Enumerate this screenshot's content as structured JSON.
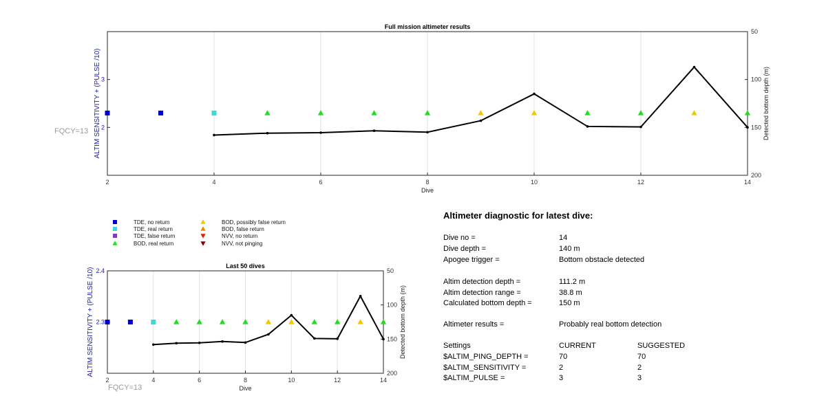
{
  "top_chart": {
    "title": "Full mission altimeter results",
    "xlabel": "Dive",
    "ylabel_left": "ALTIM SENSITIVITY + (PULSE /10)",
    "ylabel_right": "Detected bottom depth (m)",
    "side_label": "FQCY=13"
  },
  "bottom_chart": {
    "title": "Last 50 dives",
    "xlabel": "Dive",
    "ylabel_left": "ALTIM SENSITIVITY + (PULSE /10)",
    "ylabel_right": "Detected bottom depth (m)",
    "side_label": "FQCY=13"
  },
  "legend": {
    "items": [
      {
        "label": "TDE, no return",
        "marker": "square",
        "color": "#0000cc"
      },
      {
        "label": "TDE, real return",
        "marker": "square",
        "color": "#33dddd"
      },
      {
        "label": "TDE, false return",
        "marker": "square",
        "color": "#8833cc"
      },
      {
        "label": "BOD, real return",
        "marker": "triangle-up",
        "color": "#22dd22"
      },
      {
        "label": "BOD, possibly false return",
        "marker": "triangle-up",
        "color": "#f0c800"
      },
      {
        "label": "BOD, false return",
        "marker": "triangle-up",
        "color": "#ee8800"
      },
      {
        "label": "NVV, no return",
        "marker": "triangle-down",
        "color": "#dd2200"
      },
      {
        "label": "NVV, not pinging",
        "marker": "triangle-down",
        "color": "#880000"
      }
    ]
  },
  "chart_data": [
    {
      "type": "scatter+line",
      "title": "Full mission altimeter results",
      "xlabel": "Dive",
      "ylabel": "ALTIM SENSITIVITY + (PULSE /10)",
      "y2label": "Detected bottom depth (m)",
      "xlim": [
        2,
        14
      ],
      "xticks": [
        2,
        4,
        6,
        8,
        10,
        12,
        14
      ],
      "ylim": [
        1,
        4
      ],
      "yticks": [
        2,
        3
      ],
      "y2lim": [
        50,
        200
      ],
      "y2reversed": true,
      "y2ticks": [
        50,
        100,
        150,
        200
      ],
      "grid": "x",
      "markers": [
        {
          "dive": 2,
          "value": 2.3,
          "type": "TDE, no return"
        },
        {
          "dive": 3,
          "value": 2.3,
          "type": "TDE, no return"
        },
        {
          "dive": 4,
          "value": 2.3,
          "type": "TDE, real return"
        },
        {
          "dive": 5,
          "value": 2.3,
          "type": "BOD, real return"
        },
        {
          "dive": 6,
          "value": 2.3,
          "type": "BOD, real return"
        },
        {
          "dive": 7,
          "value": 2.3,
          "type": "BOD, real return"
        },
        {
          "dive": 8,
          "value": 2.3,
          "type": "BOD, real return"
        },
        {
          "dive": 9,
          "value": 2.3,
          "type": "BOD, possibly false return"
        },
        {
          "dive": 10,
          "value": 2.3,
          "type": "BOD, possibly false return"
        },
        {
          "dive": 11,
          "value": 2.3,
          "type": "BOD, real return"
        },
        {
          "dive": 12,
          "value": 2.3,
          "type": "BOD, real return"
        },
        {
          "dive": 13,
          "value": 2.3,
          "type": "BOD, possibly false return"
        },
        {
          "dive": 14,
          "value": 2.3,
          "type": "BOD, real return"
        }
      ],
      "bottom_depth": {
        "x": [
          4,
          5,
          6,
          7,
          8,
          9,
          10,
          11,
          12,
          13,
          14
        ],
        "y": [
          158,
          156,
          155.5,
          153.5,
          155,
          143,
          115,
          149,
          149.5,
          87,
          150
        ]
      }
    },
    {
      "type": "scatter+line",
      "title": "Last 50 dives",
      "xlabel": "Dive",
      "ylabel": "ALTIM SENSITIVITY + (PULSE /10)",
      "y2label": "Detected bottom depth (m)",
      "xlim": [
        2,
        14
      ],
      "xticks": [
        2,
        4,
        6,
        8,
        10,
        12,
        14
      ],
      "ylim": [
        2.2,
        2.4
      ],
      "yticks": [
        2.3,
        2.4
      ],
      "y2lim": [
        50,
        200
      ],
      "y2reversed": true,
      "y2ticks": [
        50,
        100,
        150,
        200
      ],
      "grid": "x",
      "markers": [
        {
          "dive": 2,
          "value": 2.3,
          "type": "TDE, no return"
        },
        {
          "dive": 3,
          "value": 2.3,
          "type": "TDE, no return"
        },
        {
          "dive": 4,
          "value": 2.3,
          "type": "TDE, real return"
        },
        {
          "dive": 5,
          "value": 2.3,
          "type": "BOD, real return"
        },
        {
          "dive": 6,
          "value": 2.3,
          "type": "BOD, real return"
        },
        {
          "dive": 7,
          "value": 2.3,
          "type": "BOD, real return"
        },
        {
          "dive": 8,
          "value": 2.3,
          "type": "BOD, real return"
        },
        {
          "dive": 9,
          "value": 2.3,
          "type": "BOD, possibly false return"
        },
        {
          "dive": 10,
          "value": 2.3,
          "type": "BOD, possibly false return"
        },
        {
          "dive": 11,
          "value": 2.3,
          "type": "BOD, real return"
        },
        {
          "dive": 12,
          "value": 2.3,
          "type": "BOD, real return"
        },
        {
          "dive": 13,
          "value": 2.3,
          "type": "BOD, possibly false return"
        },
        {
          "dive": 14,
          "value": 2.3,
          "type": "BOD, real return"
        }
      ],
      "bottom_depth": {
        "x": [
          4,
          5,
          6,
          7,
          8,
          9,
          10,
          11,
          12,
          13,
          14
        ],
        "y": [
          158,
          156,
          155.5,
          153.5,
          155,
          143,
          115,
          149,
          149.5,
          87,
          150
        ]
      }
    }
  ],
  "diagnostic": {
    "title": "Altimeter diagnostic for latest dive:",
    "dive_no": {
      "label": "Dive no =",
      "value": "14"
    },
    "dive_depth": {
      "label": "Dive depth =",
      "value": "140 m"
    },
    "apogee_trigger": {
      "label": "Apogee trigger =",
      "value": "Bottom obstacle detected"
    },
    "altim_detection_depth": {
      "label": "Altim detection depth =",
      "value": "111.2 m"
    },
    "altim_detection_range": {
      "label": "Altim detection range =",
      "value": "38.8 m"
    },
    "calculated_bottom_depth": {
      "label": "Calculated bottom depth =",
      "value": "150 m"
    },
    "altimeter_results": {
      "label": "Altimeter results =",
      "value": "Probably real bottom detection"
    },
    "settings": {
      "label": "Settings",
      "current_header": "CURRENT",
      "suggested_header": "SUGGESTED",
      "rows": [
        {
          "name": "$ALTIM_PING_DEPTH =",
          "current": "70",
          "suggested": "70"
        },
        {
          "name": "$ALTIM_SENSITIVITY =",
          "current": "2",
          "suggested": "2"
        },
        {
          "name": "$ALTIM_PULSE =",
          "current": "3",
          "suggested": "3"
        }
      ]
    }
  }
}
